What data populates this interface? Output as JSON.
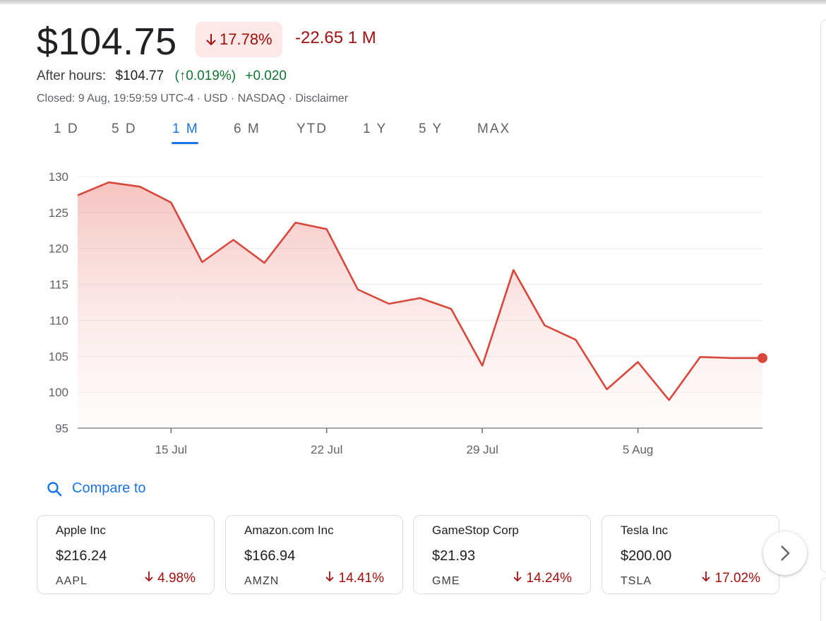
{
  "quote": {
    "price": "$104.75",
    "change_percent": "17.78%",
    "change_abs": "-22.65 1 M",
    "after_hours_label": "After hours:",
    "after_hours_price": "$104.77",
    "after_hours_change_percent": "(↑0.019%)",
    "after_hours_change_abs": "+0.020",
    "closed_line": "Closed: 9 Aug, 19:59:59 UTC-4 · USD · NASDAQ · Disclaimer"
  },
  "ranges": [
    "1 D",
    "5 D",
    "1 M",
    "6 M",
    "YTD",
    "1 Y",
    "5 Y",
    "MAX"
  ],
  "active_range": "1 M",
  "chart_data": {
    "type": "area",
    "title": "",
    "xlabel": "",
    "ylabel": "",
    "x": [
      "10 Jul",
      "11 Jul",
      "12 Jul",
      "15 Jul",
      "16 Jul",
      "17 Jul",
      "18 Jul",
      "19 Jul",
      "22 Jul",
      "23 Jul",
      "24 Jul",
      "25 Jul",
      "26 Jul",
      "29 Jul",
      "30 Jul",
      "31 Jul",
      "1 Aug",
      "2 Aug",
      "5 Aug",
      "6 Aug",
      "7 Aug",
      "8 Aug",
      "9 Aug"
    ],
    "values": [
      127.4,
      129.2,
      128.6,
      126.4,
      118.1,
      121.2,
      118.0,
      123.6,
      122.7,
      114.3,
      112.3,
      113.1,
      111.6,
      103.7,
      117.0,
      109.3,
      107.3,
      100.4,
      104.2,
      98.9,
      104.9,
      104.75,
      104.75
    ],
    "ylim": [
      95,
      130
    ],
    "yticks": [
      95,
      100,
      105,
      110,
      115,
      120,
      125,
      130
    ],
    "xtick_labels": [
      "15 Jul",
      "22 Jul",
      "29 Jul",
      "5 Aug"
    ],
    "line_color": "#d9473b",
    "grid": true
  },
  "compare": {
    "label": "Compare to"
  },
  "cards": [
    {
      "name": "Apple Inc",
      "price": "$216.24",
      "ticker": "AAPL",
      "change": "4.98%"
    },
    {
      "name": "Amazon.com Inc",
      "price": "$166.94",
      "ticker": "AMZN",
      "change": "14.41%"
    },
    {
      "name": "GameStop Corp",
      "price": "$21.93",
      "ticker": "GME",
      "change": "14.24%"
    },
    {
      "name": "Tesla Inc",
      "price": "$200.00",
      "ticker": "TSLA",
      "change": "17.02%"
    }
  ],
  "colors": {
    "negative": "#a50e0e",
    "positive": "#137333",
    "accent": "#1a73e8"
  }
}
